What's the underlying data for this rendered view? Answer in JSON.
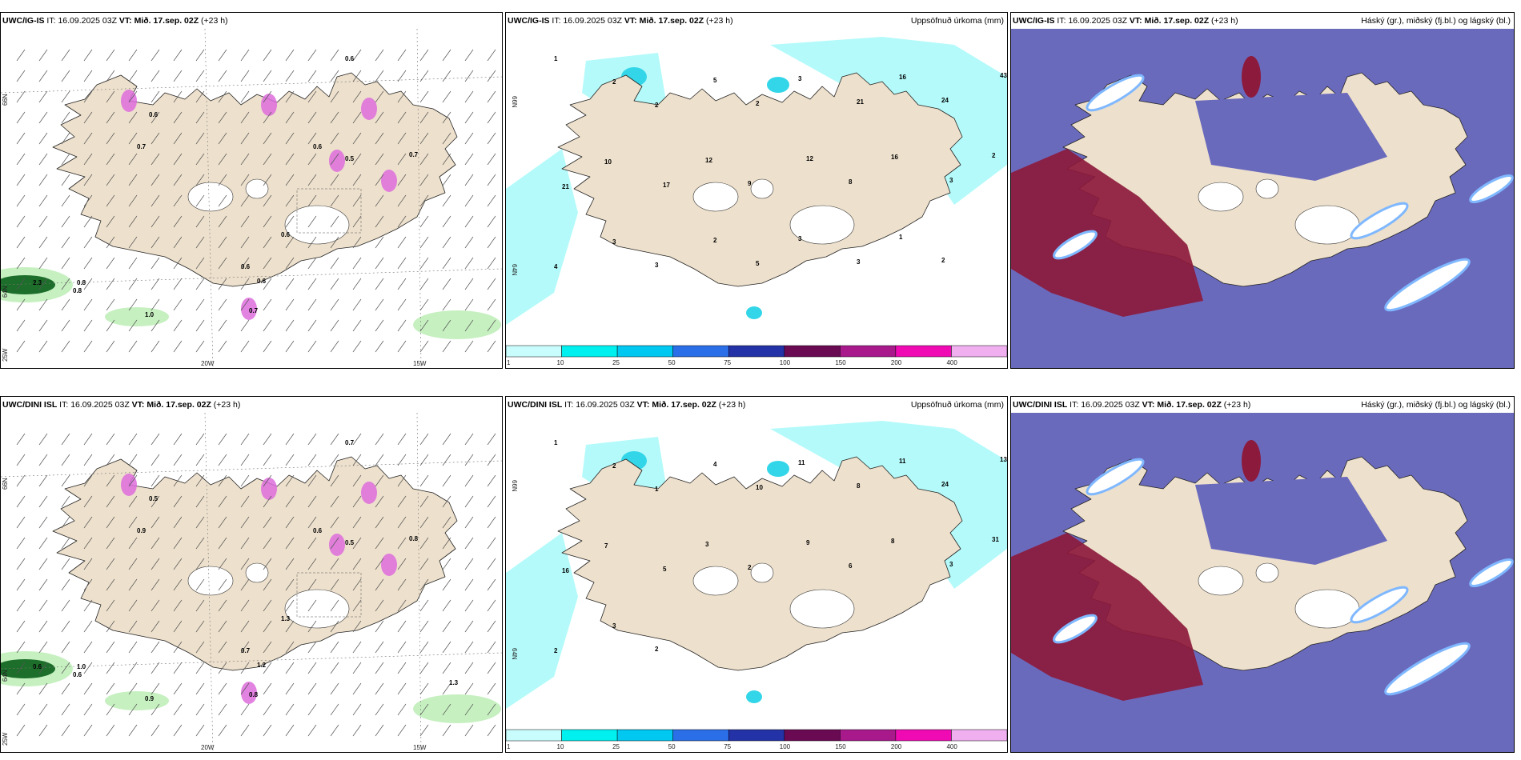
{
  "colors": {
    "land": "#ede0cc",
    "precip_light": "#b4fafa",
    "precip_mid": "#33d6e8",
    "high_cloud": "#6a6abd",
    "mid_cloud": "#8c1a3c",
    "low_cloud_edge": "#7fb8ff",
    "wind_green_light": "#c6f0c0",
    "wind_green_dark": "#1d6e2b",
    "snow_magenta": "#dd6cdc"
  },
  "rows": [
    {
      "model": "UWC/IG-IS",
      "run": "16.09.2025 03Z",
      "vt": "VT: Mið. 17.sep. 02Z",
      "lead": "(+23 h)"
    },
    {
      "model": "UWC/DINI ISL",
      "run": "16.09.2025 03Z",
      "vt": "VT: Mið. 17.sep. 02Z",
      "lead": "(+23 h)"
    }
  ],
  "labels": {
    "it_prefix": "IT:",
    "precip_title": "Uppsöfnuð úrkoma (mm)",
    "cloud_title": "Háský (gr.), miðský (fj.bl.) og lágský (bl.)"
  },
  "axis_ticks": {
    "lon": [
      "20W",
      "15W"
    ],
    "lat": [
      "66N",
      "64N"
    ],
    "lon_left": "25W"
  },
  "colorbar": {
    "ticks": [
      "1",
      "10",
      "25",
      "50",
      "75",
      "100",
      "150",
      "200",
      "400"
    ],
    "colors": [
      "#c9fdfd",
      "#00f0f0",
      "#00c8f0",
      "#2a6ee8",
      "#2432a8",
      "#6a0a52",
      "#a81a8c",
      "#f00ab4",
      "#f0b0f0"
    ]
  },
  "wind_values_top": [
    "0.6",
    "0.6",
    "0.7",
    "0.6",
    "0.5",
    "0.7",
    "0.6",
    "0.6",
    "0.8",
    "2.3",
    "0.8",
    "1.0",
    "0.7",
    "0.6"
  ],
  "wind_values_bottom": [
    "0.7",
    "0.5",
    "0.9",
    "0.6",
    "0.5",
    "0.8",
    "0.7",
    "1.2",
    "1.0",
    "0.6",
    "0.6",
    "0.9",
    "0.8",
    "1.3",
    "1.3"
  ],
  "precip_values_top": [
    "1",
    "2",
    "2",
    "5",
    "2",
    "3",
    "21",
    "16",
    "24",
    "43",
    "21",
    "10",
    "17",
    "12",
    "9",
    "12",
    "8",
    "16",
    "3",
    "2",
    "4",
    "3",
    "3",
    "2",
    "5",
    "3",
    "3",
    "1",
    "2"
  ],
  "precip_values_bottom": [
    "1",
    "2",
    "1",
    "4",
    "10",
    "11",
    "8",
    "11",
    "24",
    "13",
    "16",
    "7",
    "5",
    "3",
    "2",
    "9",
    "6",
    "8",
    "3",
    "31",
    "2",
    "3",
    "2"
  ]
}
